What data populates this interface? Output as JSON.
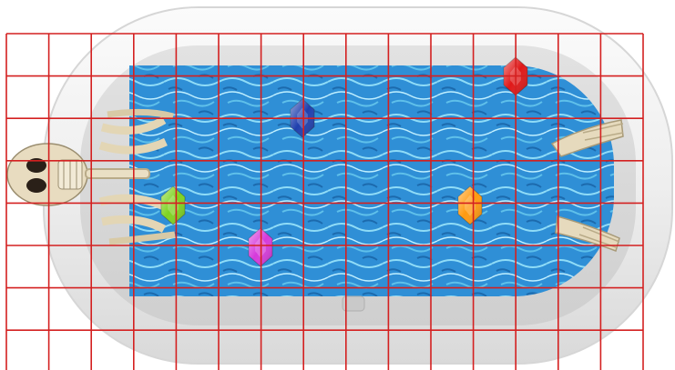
{
  "scene": {
    "board": "bathtub-grid",
    "grid": {
      "columns": 15,
      "rows": 8,
      "line_color": "#d42020"
    },
    "colors": {
      "tub_outer": "#f1f1f1",
      "tub_inner": "#e4e4e4",
      "water_dark": "#1f78c8",
      "water_light": "#5fc0ea",
      "bone": "#e8dcc0"
    },
    "character": {
      "type": "skeleton",
      "pose": "lying-in-bathtub",
      "head_side": "left",
      "feet_side": "right"
    },
    "items": [
      {
        "id": "gem-blue",
        "kind": "crystal",
        "color": "#1f3fae",
        "icon": "crystal-icon"
      },
      {
        "id": "gem-red",
        "kind": "crystal",
        "color": "#e01818",
        "icon": "crystal-icon"
      },
      {
        "id": "gem-green",
        "kind": "crystal",
        "color": "#7ed321",
        "icon": "crystal-icon"
      },
      {
        "id": "gem-orange",
        "kind": "crystal",
        "color": "#ff9a10",
        "icon": "crystal-icon"
      },
      {
        "id": "gem-pink",
        "kind": "crystal",
        "color": "#d63adb",
        "icon": "crystal-icon"
      }
    ]
  }
}
